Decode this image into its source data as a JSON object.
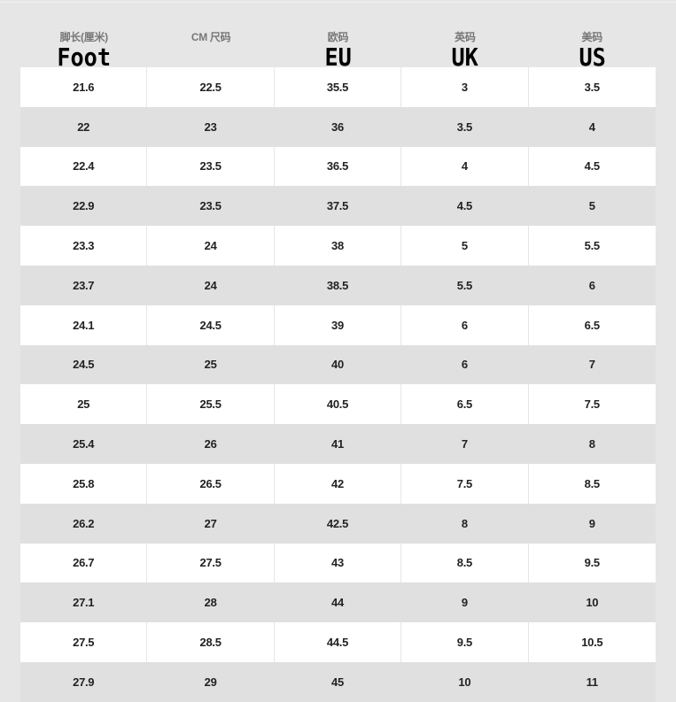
{
  "headers": [
    {
      "zh": "脚长(厘米)",
      "en": "Foot"
    },
    {
      "zh": "CM 尺码",
      "en": ""
    },
    {
      "zh": "欧码",
      "en": "EU"
    },
    {
      "zh": "英码",
      "en": "UK"
    },
    {
      "zh": "美码",
      "en": "US"
    }
  ],
  "rows": [
    [
      "21.6",
      "22.5",
      "35.5",
      "3",
      "3.5"
    ],
    [
      "22",
      "23",
      "36",
      "3.5",
      "4"
    ],
    [
      "22.4",
      "23.5",
      "36.5",
      "4",
      "4.5"
    ],
    [
      "22.9",
      "23.5",
      "37.5",
      "4.5",
      "5"
    ],
    [
      "23.3",
      "24",
      "38",
      "5",
      "5.5"
    ],
    [
      "23.7",
      "24",
      "38.5",
      "5.5",
      "6"
    ],
    [
      "24.1",
      "24.5",
      "39",
      "6",
      "6.5"
    ],
    [
      "24.5",
      "25",
      "40",
      "6",
      "7"
    ],
    [
      "25",
      "25.5",
      "40.5",
      "6.5",
      "7.5"
    ],
    [
      "25.4",
      "26",
      "41",
      "7",
      "8"
    ],
    [
      "25.8",
      "26.5",
      "42",
      "7.5",
      "8.5"
    ],
    [
      "26.2",
      "27",
      "42.5",
      "8",
      "9"
    ],
    [
      "26.7",
      "27.5",
      "43",
      "8.5",
      "9.5"
    ],
    [
      "27.1",
      "28",
      "44",
      "9",
      "10"
    ],
    [
      "27.5",
      "28.5",
      "44.5",
      "9.5",
      "10.5"
    ],
    [
      "27.9",
      "29",
      "45",
      "10",
      "11"
    ]
  ]
}
